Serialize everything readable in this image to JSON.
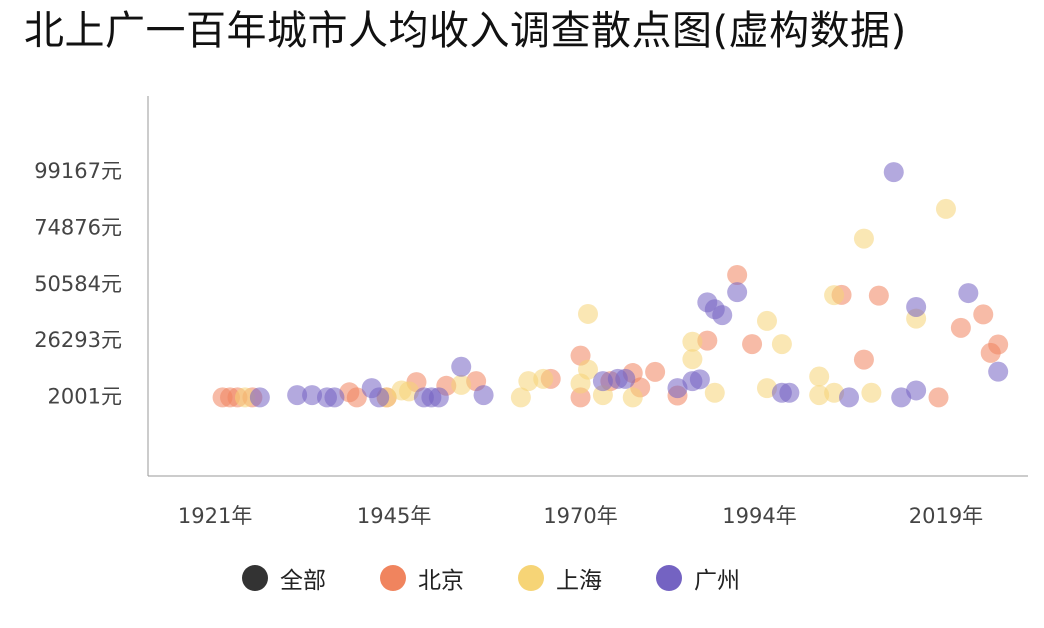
{
  "chart_data": {
    "type": "scatter",
    "title": "北上广一百年城市人均收入调查散点图(虚构数据)",
    "xlabel": "",
    "ylabel": "",
    "x_ticks": [
      {
        "value": 1921,
        "label": "1921年"
      },
      {
        "value": 1945,
        "label": "1945年"
      },
      {
        "value": 1970,
        "label": "1970年"
      },
      {
        "value": 1994,
        "label": "1994年"
      },
      {
        "value": 2019,
        "label": "2019年"
      }
    ],
    "y_ticks": [
      {
        "value": 2001,
        "label": "2001元"
      },
      {
        "value": 26293,
        "label": "26293元"
      },
      {
        "value": 50584,
        "label": "50584元"
      },
      {
        "value": 74876,
        "label": "74876元"
      },
      {
        "value": 99167,
        "label": "99167元"
      }
    ],
    "xlim": [
      1912,
      2030
    ],
    "ylim": [
      -31900,
      132000
    ],
    "grid": false,
    "legend_position": "bottom",
    "legend": [
      {
        "label": "全部",
        "color": "#333333"
      },
      {
        "label": "北京",
        "color": "#f0845e"
      },
      {
        "label": "上海",
        "color": "#f6d476"
      },
      {
        "label": "广州",
        "color": "#7463c2"
      }
    ],
    "series": [
      {
        "name": "北京",
        "color": "#f0845e",
        "points": [
          [
            1922,
            2001
          ],
          [
            1923,
            2001
          ],
          [
            1924,
            2001
          ],
          [
            1926,
            2001
          ],
          [
            1939,
            4200
          ],
          [
            1940,
            2001
          ],
          [
            1944,
            2001
          ],
          [
            1948,
            8600
          ],
          [
            1952,
            7000
          ],
          [
            1956,
            9000
          ],
          [
            1966,
            10000
          ],
          [
            1970,
            20000
          ],
          [
            1970,
            2001
          ],
          [
            1974,
            9000
          ],
          [
            1977,
            12500
          ],
          [
            1978,
            6300
          ],
          [
            1980,
            13000
          ],
          [
            1983,
            2800
          ],
          [
            1987,
            26500
          ],
          [
            1991,
            54800
          ],
          [
            1993,
            25000
          ],
          [
            2005,
            46200
          ],
          [
            2008,
            18300
          ],
          [
            2010,
            45900
          ],
          [
            2018,
            2001
          ],
          [
            2021,
            32000
          ],
          [
            2024,
            37800
          ],
          [
            2025,
            21200
          ],
          [
            2026,
            24800
          ]
        ]
      },
      {
        "name": "上海",
        "color": "#f6d476",
        "points": [
          [
            1925,
            2001
          ],
          [
            1944,
            2001
          ],
          [
            1946,
            5000
          ],
          [
            1947,
            4600
          ],
          [
            1954,
            7400
          ],
          [
            1962,
            2001
          ],
          [
            1963,
            9000
          ],
          [
            1965,
            10000
          ],
          [
            1970,
            8000
          ],
          [
            1971,
            38000
          ],
          [
            1971,
            14000
          ],
          [
            1973,
            3000
          ],
          [
            1977,
            2001
          ],
          [
            1985,
            18500
          ],
          [
            1985,
            26000
          ],
          [
            1988,
            4000
          ],
          [
            1995,
            35000
          ],
          [
            1995,
            6000
          ],
          [
            1997,
            25000
          ],
          [
            2002,
            11000
          ],
          [
            2002,
            3000
          ],
          [
            2004,
            46100
          ],
          [
            2004,
            4000
          ],
          [
            2008,
            70500
          ],
          [
            2009,
            4000
          ],
          [
            2015,
            36000
          ],
          [
            2019,
            83300
          ]
        ]
      },
      {
        "name": "广州",
        "color": "#7463c2",
        "points": [
          [
            1927,
            2001
          ],
          [
            1932,
            3000
          ],
          [
            1934,
            3000
          ],
          [
            1936,
            2001
          ],
          [
            1937,
            2001
          ],
          [
            1942,
            6000
          ],
          [
            1943,
            2001
          ],
          [
            1949,
            2001
          ],
          [
            1950,
            2001
          ],
          [
            1951,
            2001
          ],
          [
            1954,
            15200
          ],
          [
            1957,
            3000
          ],
          [
            1973,
            9000
          ],
          [
            1975,
            10000
          ],
          [
            1976,
            10000
          ],
          [
            1983,
            6000
          ],
          [
            1985,
            9000
          ],
          [
            1986,
            9800
          ],
          [
            1987,
            43000
          ],
          [
            1988,
            40000
          ],
          [
            1989,
            37500
          ],
          [
            1991,
            47400
          ],
          [
            1997,
            4000
          ],
          [
            1998,
            4000
          ],
          [
            2006,
            2001
          ],
          [
            2012,
            99167
          ],
          [
            2013,
            2001
          ],
          [
            2015,
            5000
          ],
          [
            2015,
            41000
          ],
          [
            2022,
            47000
          ],
          [
            2026,
            13100
          ]
        ]
      }
    ]
  }
}
